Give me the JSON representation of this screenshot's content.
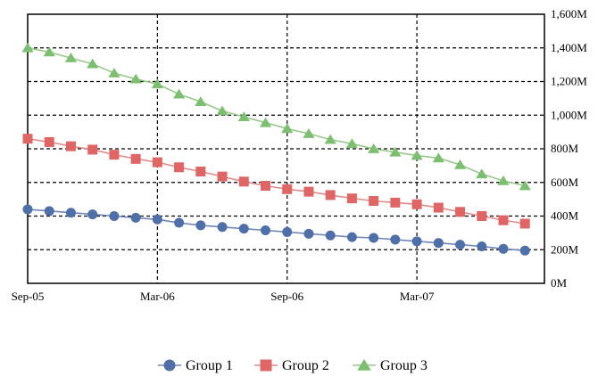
{
  "chart_data": {
    "type": "line",
    "x": [
      "2005-09",
      "2005-10",
      "2005-11",
      "2005-12",
      "2006-01",
      "2006-02",
      "2006-03",
      "2006-04",
      "2006-05",
      "2006-06",
      "2006-07",
      "2006-08",
      "2006-09",
      "2006-10",
      "2006-11",
      "2006-12",
      "2007-01",
      "2007-02",
      "2007-03",
      "2007-04",
      "2007-05",
      "2007-06",
      "2007-07",
      "2007-08"
    ],
    "x_ticks": [
      {
        "x": "2005-09",
        "label": "Sep-05"
      },
      {
        "x": "2006-03",
        "label": "Mar-06"
      },
      {
        "x": "2006-09",
        "label": "Sep-06"
      },
      {
        "x": "2007-03",
        "label": "Mar-07"
      }
    ],
    "ylim": [
      0,
      1600
    ],
    "y_ticks": [
      {
        "value": 0,
        "label": "0M"
      },
      {
        "value": 200,
        "label": "200M"
      },
      {
        "value": 400,
        "label": "400M"
      },
      {
        "value": 600,
        "label": "600M"
      },
      {
        "value": 800,
        "label": "800M"
      },
      {
        "value": 1000,
        "label": "1,000M"
      },
      {
        "value": 1200,
        "label": "1,200M"
      },
      {
        "value": 1400,
        "label": "1,400M"
      },
      {
        "value": 1600,
        "label": "1,600M"
      }
    ],
    "y_axis_side": "right",
    "grid": true,
    "legend_position": "bottom",
    "title": "",
    "xlabel": "",
    "ylabel": "",
    "series": [
      {
        "name": "Group 1",
        "marker": "circle",
        "color": "#4f6fa8",
        "line_color": "#6f86b8",
        "values": [
          440,
          430,
          420,
          410,
          400,
          390,
          380,
          360,
          345,
          335,
          325,
          315,
          305,
          295,
          285,
          275,
          270,
          260,
          250,
          240,
          230,
          220,
          205,
          195
        ]
      },
      {
        "name": "Group 2",
        "marker": "square",
        "color": "#e06666",
        "line_color": "#e08a8a",
        "values": [
          860,
          840,
          815,
          795,
          765,
          740,
          720,
          690,
          665,
          635,
          605,
          580,
          560,
          545,
          525,
          505,
          490,
          480,
          470,
          450,
          425,
          400,
          375,
          355
        ]
      },
      {
        "name": "Group 3",
        "marker": "triangle",
        "color": "#7dbf70",
        "line_color": "#95c98a",
        "values": [
          1400,
          1375,
          1340,
          1305,
          1250,
          1215,
          1185,
          1125,
          1080,
          1025,
          990,
          955,
          920,
          890,
          855,
          830,
          800,
          780,
          760,
          745,
          705,
          650,
          610,
          580
        ]
      }
    ]
  }
}
